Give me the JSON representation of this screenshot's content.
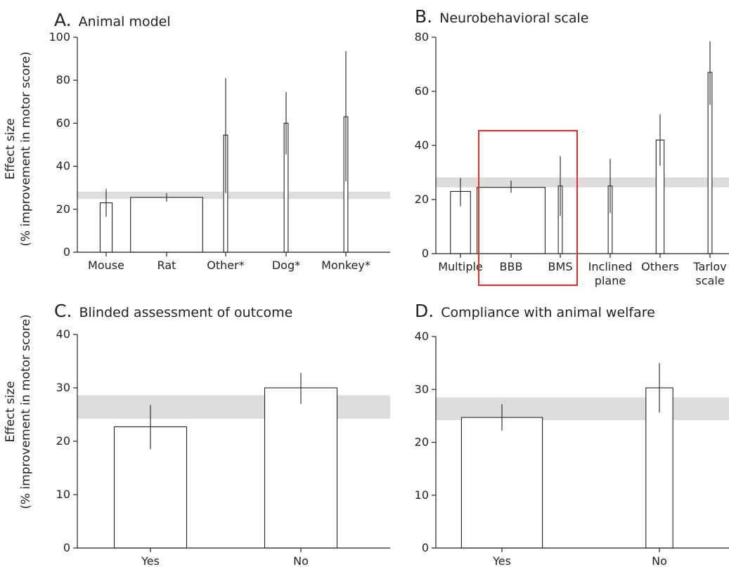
{
  "y_axis_label": {
    "line1": "Effect size",
    "line2": "(% improvement in motor score)"
  },
  "colors": {
    "bar_fill": "#ffffff",
    "bar_stroke": "#222222",
    "pooled_band": "#d9d6d6",
    "highlight_box": "#e0312b"
  },
  "chart_data": [
    {
      "type": "bar",
      "letter": "A.",
      "title": "Animal model",
      "categories": [
        "Mouse",
        "Rat",
        "Other*",
        "Dog*",
        "Monkey*"
      ],
      "values": [
        23,
        25.5,
        54.5,
        60,
        63
      ],
      "error_low": [
        16.5,
        23.5,
        27.5,
        45.5,
        33
      ],
      "error_high": [
        29.5,
        27.5,
        81,
        74.5,
        93.5
      ],
      "relative_widths": [
        0.3,
        1.8,
        0.1,
        0.1,
        0.1
      ],
      "pooled_band": [
        24.8,
        28.2
      ],
      "ylim": [
        0,
        100
      ],
      "yticks": [
        0,
        20,
        40,
        60,
        80,
        100
      ]
    },
    {
      "type": "bar",
      "letter": "B.",
      "title": "Neurobehavioral scale",
      "categories": [
        "Multiple",
        "BBB",
        "BMS",
        "Inclined plane",
        "Others",
        "Tarlov scale"
      ],
      "category_lines": [
        [
          "Multiple"
        ],
        [
          "BBB"
        ],
        [
          "BMS"
        ],
        [
          "Inclined",
          "plane"
        ],
        [
          "Others"
        ],
        [
          "Tarlov",
          "scale"
        ]
      ],
      "values": [
        23,
        24.5,
        25,
        25,
        42,
        67
      ],
      "error_low": [
        17.5,
        22.5,
        14,
        15,
        32.5,
        55
      ],
      "error_high": [
        28,
        27,
        36,
        35,
        51.5,
        78.5
      ],
      "relative_widths": [
        0.5,
        1.7,
        0.1,
        0.1,
        0.2,
        0.1
      ],
      "pooled_band": [
        24.5,
        28.2
      ],
      "highlighted_categories": [
        "BBB",
        "BMS"
      ],
      "ylim": [
        0,
        80
      ],
      "yticks": [
        0,
        20,
        40,
        60,
        80
      ]
    },
    {
      "type": "bar",
      "letter": "C.",
      "title": "Blinded assessment of outcome",
      "categories": [
        "Yes",
        "No"
      ],
      "values": [
        22.7,
        30
      ],
      "error_low": [
        18.5,
        27
      ],
      "error_high": [
        26.8,
        32.8
      ],
      "relative_widths": [
        1,
        1
      ],
      "pooled_band": [
        24.2,
        28.6
      ],
      "ylim": [
        0,
        40
      ],
      "yticks": [
        0,
        10,
        20,
        30,
        40
      ]
    },
    {
      "type": "bar",
      "letter": "D.",
      "title": "Compliance with animal welfare",
      "categories": [
        "Yes",
        "No"
      ],
      "values": [
        24.7,
        30.3
      ],
      "error_low": [
        22.2,
        25.6
      ],
      "error_high": [
        27.2,
        35
      ],
      "relative_widths": [
        1.2,
        0.4
      ],
      "pooled_band": [
        24.2,
        28.5
      ],
      "ylim": [
        0,
        40
      ],
      "yticks": [
        0,
        10,
        20,
        30,
        40
      ]
    }
  ]
}
